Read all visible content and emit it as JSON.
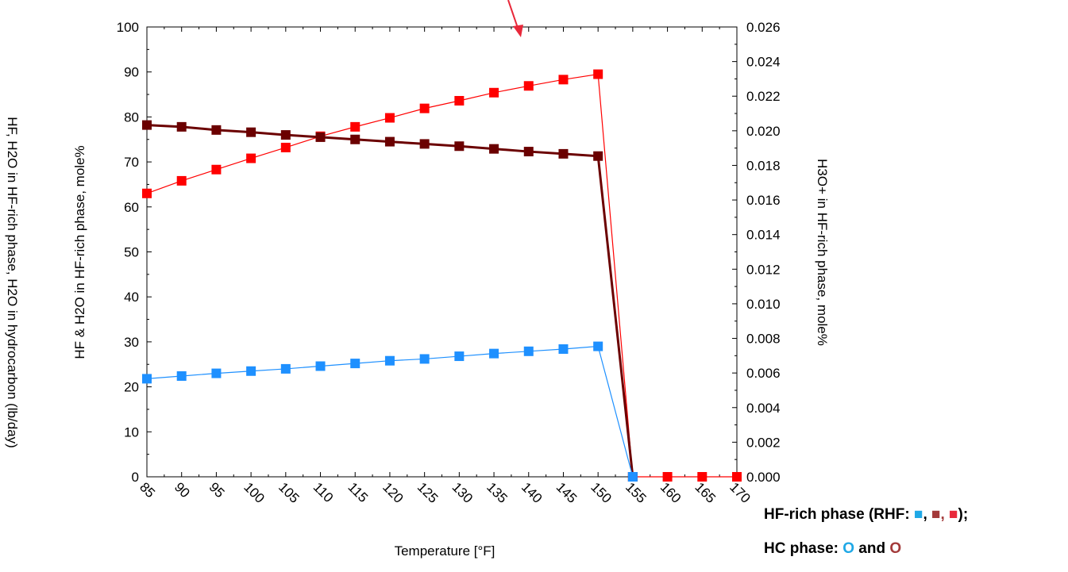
{
  "chart_data": {
    "type": "line",
    "xlabel": "Temperature [°F]",
    "ylabel_left": "HF & H2O in HF-rich phase, mole%",
    "ylabel_right": "H3O+ in HF-rich phase, mole%",
    "ylabel_outer": "HF, H2O in HF-rich phase, H2O in hydrocarbon (lb/day)",
    "x_ticks": [
      "85",
      "90",
      "95",
      "100",
      "105",
      "110",
      "115",
      "120",
      "125",
      "130",
      "135",
      "140",
      "145",
      "150",
      "155",
      "160",
      "165",
      "170"
    ],
    "xlim": [
      85,
      170
    ],
    "y_left_ticks": [
      "0",
      "10",
      "20",
      "30",
      "40",
      "50",
      "60",
      "70",
      "80",
      "90",
      "100"
    ],
    "ylim_left": [
      0,
      100
    ],
    "y_right_ticks": [
      "0.000",
      "0.002",
      "0.004",
      "0.006",
      "0.008",
      "0.010",
      "0.012",
      "0.014",
      "0.016",
      "0.018",
      "0.020",
      "0.022",
      "0.024",
      "0.026"
    ],
    "ylim_right": [
      0,
      0.026
    ],
    "series": [
      {
        "color": "#ff0000",
        "axis": "left",
        "x": [
          85,
          90,
          95,
          100,
          105,
          110,
          115,
          120,
          125,
          130,
          135,
          140,
          145,
          150,
          155,
          160,
          165,
          170
        ],
        "y": [
          63.0,
          65.8,
          68.3,
          70.8,
          73.2,
          75.7,
          77.8,
          79.8,
          81.9,
          83.6,
          85.4,
          86.9,
          88.3,
          89.5,
          0.0,
          0.0,
          0.0,
          0.0
        ]
      },
      {
        "color": "#6b0000",
        "axis": "left",
        "x": [
          85,
          90,
          95,
          100,
          105,
          110,
          115,
          120,
          125,
          130,
          135,
          140,
          145,
          150,
          155
        ],
        "y": [
          78.2,
          77.8,
          77.1,
          76.6,
          76.0,
          75.5,
          75.0,
          74.5,
          74.0,
          73.5,
          72.9,
          72.3,
          71.8,
          71.3,
          0.0
        ]
      },
      {
        "color": "#1e90ff",
        "axis": "left",
        "x": [
          85,
          90,
          95,
          100,
          105,
          110,
          115,
          120,
          125,
          130,
          135,
          140,
          145,
          150,
          155
        ],
        "y": [
          21.8,
          22.4,
          23.0,
          23.5,
          24.0,
          24.6,
          25.2,
          25.8,
          26.2,
          26.8,
          27.4,
          27.9,
          28.4,
          29.0,
          0.0
        ]
      }
    ],
    "grid": false,
    "annotation_arrow_color": "#e8283a"
  },
  "legend": {
    "line1_prefix": "HF-rich phase (RHF: ",
    "sym1": "■",
    "sep1": ", ",
    "sym2": "■",
    "sep2": ", ",
    "sym3": "■",
    "line1_suffix": ");",
    "line2_prefix": "HC phase: ",
    "circ1": "O",
    "line2_mid": " and ",
    "circ2": "O"
  }
}
